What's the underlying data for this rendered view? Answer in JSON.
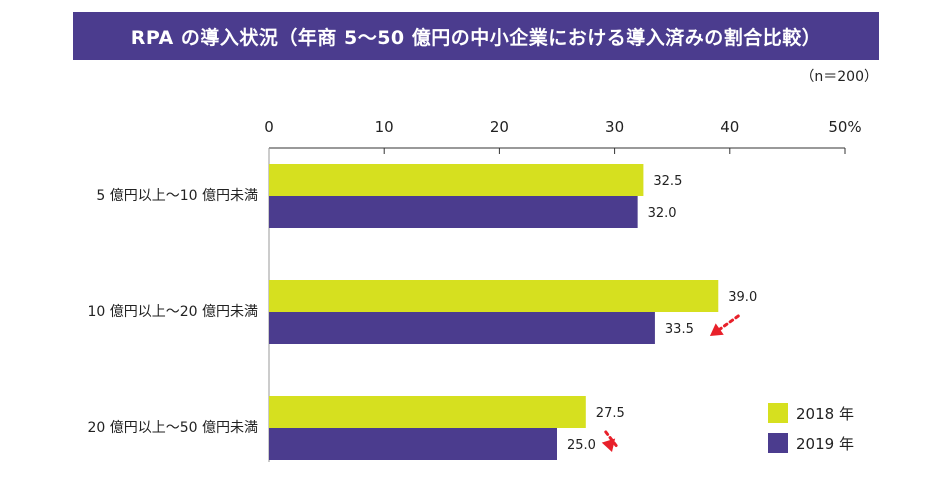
{
  "title": "RPA の導入状況（年商 5～50 億円の中小企業における導入済みの割合比較）",
  "sample_note": "（n＝200）",
  "colors": {
    "title_bg": "#4b3c8e",
    "series_2018": "#d6e01f",
    "series_2019": "#4b3c8e",
    "arrow": "#e8202a"
  },
  "chart_data": {
    "type": "bar",
    "orientation": "horizontal",
    "title": "RPA の導入状況（年商 5～50 億円の中小企業における導入済みの割合比較）",
    "categories": [
      "5 億円以上～10 億円未満",
      "10 億円以上～20 億円未満",
      "20 億円以上～50 億円未満"
    ],
    "series": [
      {
        "name": "2018 年",
        "values": [
          32.5,
          39.0,
          27.5
        ],
        "labels": [
          "32.5",
          "39.0",
          "27.5"
        ]
      },
      {
        "name": "2019 年",
        "values": [
          32.0,
          33.5,
          25.0
        ],
        "labels": [
          "32.0",
          "33.5",
          "25.0"
        ]
      }
    ],
    "xlim": [
      0,
      50
    ],
    "ticks": [
      "0",
      "10",
      "20",
      "30",
      "40",
      "50%"
    ],
    "legend_position": "bottom-right",
    "decrease_arrows": [
      1,
      2
    ]
  }
}
